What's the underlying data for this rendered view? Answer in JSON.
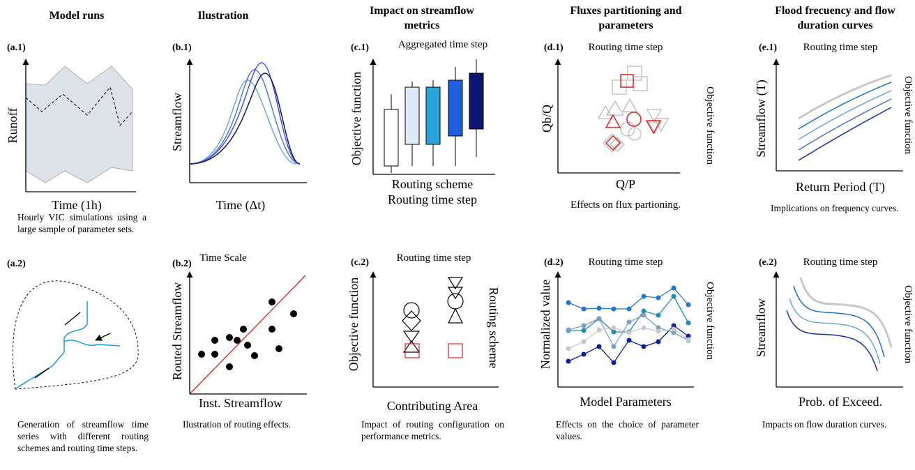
{
  "columns": [
    "Model runs",
    "Ilustration",
    "Impact on streamflow metrics",
    "Fluxes partitioning and parameters",
    "Flood frecuency and flow duration curves"
  ],
  "panels": {
    "a1": {
      "label": "(a.1)",
      "y_label": "Runoff",
      "x_label": "Time (1h)",
      "caption": "Hourly VIC simulations using a large sample of parameter sets."
    },
    "b1": {
      "label": "(b.1)",
      "y_label": "Streamflow",
      "x_label": "Time (Δt)"
    },
    "c1": {
      "label": "(c.1)",
      "top": "Aggregated time step",
      "y_label": "Objective function",
      "x_label": "Routing scheme",
      "x_label_2": "Routing time step"
    },
    "d1": {
      "label": "(d.1)",
      "top": "Routing time step",
      "y_label": "Qb/Q",
      "right_label": "Objective function",
      "x_label": "Q/P",
      "caption": "Effects on flux partioning."
    },
    "e1": {
      "label": "(e.1)",
      "top": "Routing time step",
      "y_label": "Streamflow (T)",
      "right_label": "Objective function",
      "x_label": "Return Period (T)",
      "caption": "Implications on frequency curves."
    },
    "a2": {
      "label": "(a.2)",
      "caption": "Generation of streamflow time series with different routing schemes and routing time steps."
    },
    "b2": {
      "label": "(b.2)",
      "top": "Time Scale",
      "y_label": "Routed Streamflow",
      "x_label": "Inst. Streamflow",
      "caption": "Ilustration of routing effects."
    },
    "c2": {
      "label": "(c.2)",
      "top": "Routing time step",
      "y_label": "Objective function",
      "right_label": "Routing scheme",
      "x_label": "Contributing Area",
      "caption": "Impact of routing configuration on performance metrics."
    },
    "d2": {
      "label": "(d.2)",
      "top": "Routing time step",
      "y_label": "Normalized value",
      "right_label": "Objective function",
      "x_label": "Model Parameters",
      "caption": "Effects on the choice of parameter values."
    },
    "e2": {
      "label": "(e.2)",
      "top": "Routing time step",
      "y_label": "Streamflow",
      "right_label": "Objective function",
      "x_label": "Prob. of Exceed.",
      "caption": "Impacts on flow duration curves."
    }
  }
}
